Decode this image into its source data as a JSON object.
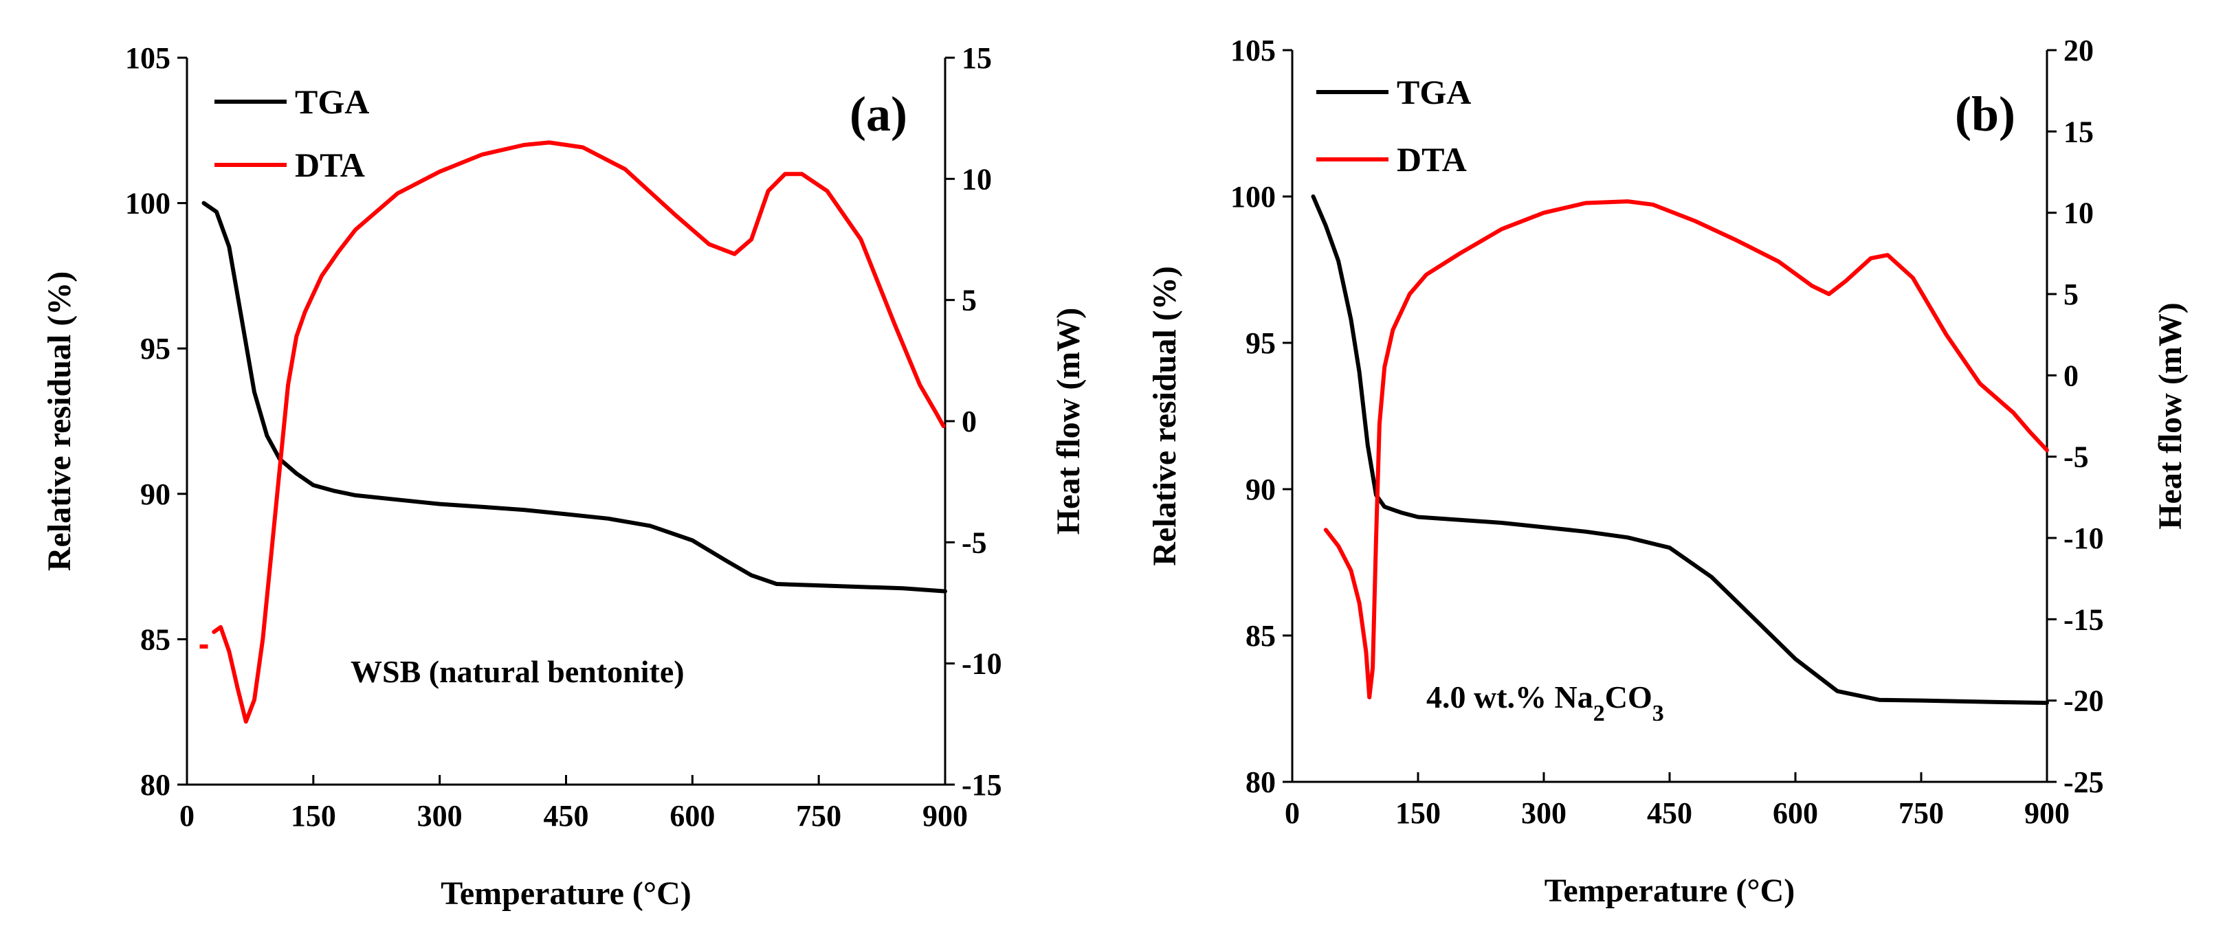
{
  "colors": {
    "tga": "#000000",
    "dta": "#ff0000"
  },
  "chart_data": [
    {
      "type": "line",
      "panel_label": "(a)",
      "annotation": "WSB (natural  bentonite)",
      "annotation_sub": "",
      "annotation_tail": "",
      "xlabel": "Temperature  (°C)",
      "ylabel_left": "Relative residual (%)",
      "ylabel_right": "Heat flow (mW)",
      "xlim": [
        0,
        900
      ],
      "ylim_left": [
        80,
        105
      ],
      "ylim_right": [
        -15,
        15
      ],
      "xticks": [
        "0",
        "150",
        "300",
        "450",
        "600",
        "750",
        "900"
      ],
      "yticks_left": [
        "80",
        "85",
        "90",
        "95",
        "100",
        "105"
      ],
      "yticks_right": [
        "-15",
        "-10",
        "-5",
        "0",
        "5",
        "10",
        "15"
      ],
      "legend": [
        "TGA",
        "DTA"
      ],
      "legend_position": "top-left",
      "series": [
        {
          "name": "TGA",
          "axis": "left",
          "x": [
            20,
            35,
            50,
            65,
            80,
            95,
            110,
            130,
            150,
            175,
            200,
            250,
            300,
            350,
            400,
            450,
            500,
            550,
            600,
            640,
            670,
            700,
            750,
            800,
            850,
            900
          ],
          "y": [
            100,
            99.7,
            98.5,
            96.0,
            93.5,
            92.0,
            91.2,
            90.7,
            90.3,
            90.1,
            89.95,
            89.8,
            89.65,
            89.55,
            89.45,
            89.3,
            89.15,
            88.9,
            88.4,
            87.7,
            87.2,
            86.9,
            86.85,
            86.8,
            86.75,
            86.65
          ]
        },
        {
          "name": "DTA",
          "axis": "right",
          "gap_after_index": 0,
          "x": [
            20,
            32,
            40,
            50,
            60,
            70,
            80,
            90,
            100,
            110,
            120,
            130,
            140,
            160,
            180,
            200,
            250,
            300,
            350,
            400,
            430,
            470,
            520,
            580,
            620,
            650,
            670,
            690,
            710,
            730,
            760,
            800,
            840,
            870,
            890,
            898
          ],
          "y": [
            -9.3,
            -8.7,
            -8.5,
            -9.5,
            -11.0,
            -12.4,
            -11.5,
            -9.0,
            -5.5,
            -2.0,
            1.5,
            3.5,
            4.5,
            6.0,
            7.0,
            7.9,
            9.4,
            10.3,
            11.0,
            11.4,
            11.5,
            11.3,
            10.4,
            8.5,
            7.3,
            6.9,
            7.5,
            9.5,
            10.2,
            10.2,
            9.5,
            7.5,
            4.0,
            1.5,
            0.3,
            -0.2
          ]
        }
      ]
    },
    {
      "type": "line",
      "panel_label": "(b)",
      "annotation": "4.0 wt.%  Na",
      "annotation_sub": "2",
      "annotation_tail": "CO",
      "annotation_sub2": "3",
      "xlabel": "Temperature  (°C)",
      "ylabel_left": "Relative residual (%)",
      "ylabel_right": "Heat flow (mW)",
      "xlim": [
        0,
        900
      ],
      "ylim_left": [
        80,
        105
      ],
      "ylim_right": [
        -25,
        20
      ],
      "xticks": [
        "0",
        "150",
        "300",
        "450",
        "600",
        "750",
        "900"
      ],
      "yticks_left": [
        "80",
        "85",
        "90",
        "95",
        "100",
        "105"
      ],
      "yticks_right": [
        "-25",
        "-20",
        "-15",
        "-10",
        "-5",
        "0",
        "5",
        "10",
        "15",
        "20"
      ],
      "legend": [
        "TGA",
        "DTA"
      ],
      "legend_position": "top-left",
      "series": [
        {
          "name": "TGA",
          "axis": "left",
          "x": [
            25,
            40,
            55,
            70,
            80,
            90,
            100,
            110,
            130,
            150,
            200,
            250,
            300,
            350,
            400,
            450,
            500,
            550,
            600,
            650,
            700,
            750,
            800,
            850,
            900
          ],
          "y": [
            100,
            99.0,
            97.8,
            95.8,
            94.0,
            91.5,
            89.8,
            89.4,
            89.2,
            89.05,
            88.95,
            88.85,
            88.7,
            88.55,
            88.35,
            88.0,
            87.0,
            85.6,
            84.2,
            83.1,
            82.8,
            82.78,
            82.75,
            82.72,
            82.7
          ]
        },
        {
          "name": "DTA",
          "axis": "right",
          "x": [
            40,
            55,
            70,
            80,
            88,
            92,
            96,
            100,
            104,
            110,
            120,
            140,
            160,
            200,
            250,
            300,
            350,
            400,
            430,
            480,
            530,
            580,
            620,
            640,
            660,
            690,
            710,
            740,
            780,
            820,
            860,
            880,
            900
          ],
          "y": [
            -9.5,
            -10.5,
            -12.0,
            -14.0,
            -17.0,
            -19.8,
            -18.0,
            -10.0,
            -3.0,
            0.5,
            2.8,
            5.0,
            6.2,
            7.5,
            9.0,
            10.0,
            10.6,
            10.7,
            10.5,
            9.5,
            8.3,
            7.0,
            5.5,
            5.0,
            5.8,
            7.2,
            7.4,
            6.0,
            2.5,
            -0.5,
            -2.3,
            -3.5,
            -4.6
          ]
        }
      ]
    }
  ]
}
